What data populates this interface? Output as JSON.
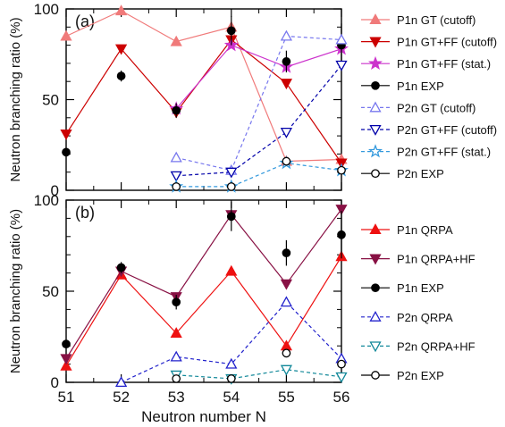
{
  "chart_data": [
    {
      "type": "line",
      "panel_label": "(a)",
      "ylabel": "Neutron branching ratio (%)",
      "xlabel": "",
      "xlim": [
        51,
        56
      ],
      "ylim": [
        0,
        100
      ],
      "y_ticks": [
        0,
        50,
        100
      ],
      "legend_position": "right-outside",
      "series": [
        {
          "name": "P1n GT (cutoff)",
          "color": "#f07a7a",
          "marker": "triangle-up-filled",
          "line": "solid",
          "x": [
            51,
            52,
            53,
            54,
            55,
            56
          ],
          "y": [
            85,
            99,
            82,
            90,
            16,
            17
          ]
        },
        {
          "name": "P1n GT+FF (cutoff)",
          "color": "#cc0000",
          "marker": "triangle-down-filled",
          "line": "solid",
          "x": [
            51,
            52,
            53,
            54,
            55,
            56
          ],
          "y": [
            31,
            78,
            43,
            83,
            59,
            15
          ]
        },
        {
          "name": "P1n GT+FF (stat.)",
          "color": "#cc33cc",
          "marker": "star-filled",
          "line": "solid",
          "x": [
            53,
            54,
            55,
            56
          ],
          "y": [
            45,
            80,
            68,
            78
          ]
        },
        {
          "name": "P1n EXP",
          "color": "#000000",
          "marker": "circle-filled",
          "line": "none",
          "x": [
            51,
            52,
            53,
            54,
            55,
            56
          ],
          "y": [
            21,
            63,
            44,
            88,
            71,
            80
          ],
          "yerr": [
            0,
            3,
            4,
            8,
            6,
            12
          ]
        },
        {
          "name": "P2n GT (cutoff)",
          "color": "#7777ee",
          "marker": "triangle-up-open",
          "line": "dashed",
          "x": [
            53,
            54,
            55,
            56
          ],
          "y": [
            18,
            11,
            85,
            83
          ]
        },
        {
          "name": "P2n GT+FF (cutoff)",
          "color": "#0000aa",
          "marker": "triangle-down-open",
          "line": "dashed",
          "x": [
            53,
            54,
            55,
            56
          ],
          "y": [
            8,
            10,
            32,
            69
          ]
        },
        {
          "name": "P2n GT+FF (stat.)",
          "color": "#3399dd",
          "marker": "star-open",
          "line": "dashed",
          "x": [
            53,
            54,
            55,
            56
          ],
          "y": [
            2,
            2,
            15,
            11
          ]
        },
        {
          "name": "P2n EXP",
          "color": "#000000",
          "marker": "circle-open",
          "line": "none",
          "x": [
            53,
            54,
            55,
            56
          ],
          "y": [
            2,
            2,
            16,
            11
          ]
        }
      ]
    },
    {
      "type": "line",
      "panel_label": "(b)",
      "ylabel": "Neutron branching ratio (%)",
      "xlabel": "Neutron number N",
      "xlim": [
        51,
        56
      ],
      "ylim": [
        0,
        100
      ],
      "y_ticks": [
        0,
        50,
        100
      ],
      "x_ticks": [
        51,
        52,
        53,
        54,
        55,
        56
      ],
      "legend_position": "right-outside",
      "series": [
        {
          "name": "P1n QRPA",
          "color": "#ee1111",
          "marker": "triangle-up-filled",
          "line": "solid",
          "x": [
            51,
            52,
            53,
            54,
            55,
            56
          ],
          "y": [
            9,
            59,
            27,
            61,
            20,
            69
          ]
        },
        {
          "name": "P1n QRPA+HF",
          "color": "#881144",
          "marker": "triangle-down-filled",
          "line": "solid",
          "x": [
            51,
            52,
            53,
            54,
            55,
            56
          ],
          "y": [
            13,
            61,
            47,
            92,
            54,
            95
          ]
        },
        {
          "name": "P1n EXP",
          "color": "#000000",
          "marker": "circle-filled",
          "line": "none",
          "x": [
            51,
            52,
            53,
            54,
            55,
            56
          ],
          "y": [
            21,
            63,
            44,
            91,
            71,
            81
          ],
          "yerr": [
            0,
            3,
            4,
            8,
            7,
            13
          ]
        },
        {
          "name": "P2n QRPA",
          "color": "#2222cc",
          "marker": "triangle-up-open",
          "line": "dashed",
          "x": [
            52,
            53,
            54,
            55,
            56
          ],
          "y": [
            0,
            14,
            10,
            44,
            13
          ]
        },
        {
          "name": "P2n QRPA+HF",
          "color": "#118899",
          "marker": "triangle-down-open",
          "line": "dashed",
          "x": [
            53,
            54,
            55,
            56
          ],
          "y": [
            4,
            2,
            7,
            3
          ]
        },
        {
          "name": "P2n EXP",
          "color": "#000000",
          "marker": "circle-open",
          "line": "none",
          "x": [
            53,
            54,
            55,
            56
          ],
          "y": [
            2,
            2,
            16,
            10
          ]
        }
      ]
    }
  ]
}
